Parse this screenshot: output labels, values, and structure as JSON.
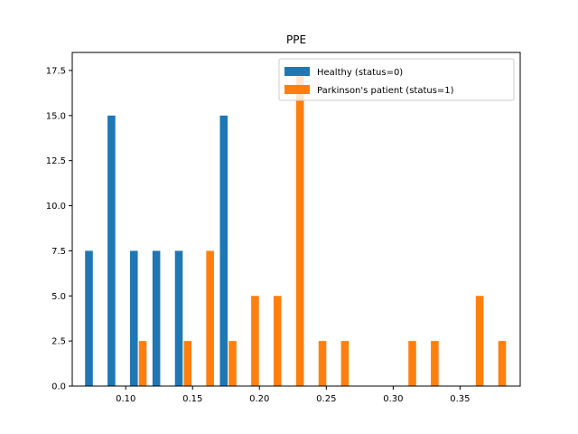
{
  "chart_data": {
    "type": "bar",
    "title": "PPE",
    "xlabel": "",
    "ylabel": "",
    "xlim": [
      0.06,
      0.395
    ],
    "ylim": [
      0,
      18.5
    ],
    "xticks": [
      0.1,
      0.15,
      0.2,
      0.25,
      0.3,
      0.35
    ],
    "xtick_labels": [
      "0.10",
      "0.15",
      "0.20",
      "0.25",
      "0.30",
      "0.35"
    ],
    "yticks": [
      0,
      2.5,
      5,
      7.5,
      10,
      12.5,
      15,
      17.5
    ],
    "ytick_labels": [
      "0.0",
      "2.5",
      "5.0",
      "7.5",
      "10.0",
      "12.5",
      "15.0",
      "17.5"
    ],
    "bar_width": 0.0058,
    "legend_position": "upper right",
    "series": [
      {
        "name": "Healthy (status=0)",
        "color": "#1f77b4",
        "x": [
          0.0725,
          0.0893,
          0.1061,
          0.1229,
          0.1397,
          0.1733
        ],
        "values": [
          7.5,
          15,
          7.5,
          7.5,
          7.5,
          15
        ]
      },
      {
        "name": "Parkinson's patient (status=1)",
        "color": "#ff7f0e",
        "x": [
          0.1127,
          0.1463,
          0.1631,
          0.1799,
          0.1967,
          0.2135,
          0.2303,
          0.2471,
          0.2639,
          0.3143,
          0.3311,
          0.3647,
          0.3815
        ],
        "values": [
          2.5,
          2.5,
          7.5,
          2.5,
          5,
          5,
          17.6,
          2.5,
          2.5,
          2.5,
          2.5,
          5,
          2.5
        ]
      }
    ]
  }
}
